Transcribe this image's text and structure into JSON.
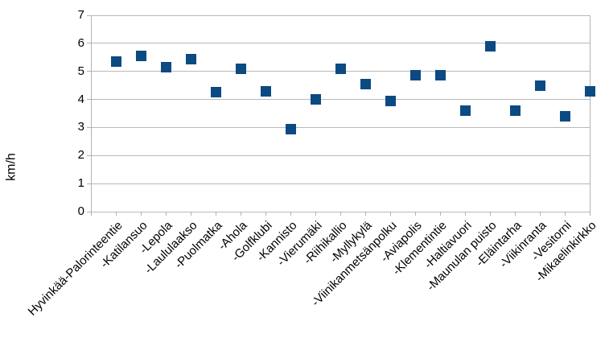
{
  "chart_data": {
    "type": "scatter",
    "title": "",
    "xlabel": "",
    "ylabel": "km/h",
    "categories": [
      "Hyvinkää-Palorinteentie",
      "-Katilansuo",
      "-Lepola",
      "-Laululaakso",
      "-Puolmatka",
      "-Ahola",
      "-Golfklubi",
      "-Kannisto",
      "-Vierumäki",
      "-Riihikallio",
      "-Myllykylä",
      "-Viinikanmetsänpolku",
      "-Aviapolis",
      "-Klementintie",
      "-Haltiavuori",
      "-Maunulan puisto",
      "-Eläintarha",
      "-Viikinranta",
      "-Vesitorni",
      "-Mikaelinkirkko"
    ],
    "values": [
      5.35,
      5.55,
      5.15,
      5.45,
      4.25,
      5.1,
      4.3,
      2.95,
      4.0,
      5.1,
      4.55,
      3.95,
      4.85,
      4.85,
      3.6,
      5.9,
      3.6,
      4.5,
      3.4,
      4.3
    ],
    "ylim": [
      0,
      7
    ],
    "ytick_step": 1,
    "ytick_labels": [
      "0",
      "1",
      "2",
      "3",
      "4",
      "5",
      "6",
      "7"
    ],
    "grid": true,
    "legend": "none",
    "marker": "square",
    "marker_size": 13,
    "marker_color": "#0b4a82",
    "grid_color": "#b9b9b9",
    "axis_color": "#b3b3b3",
    "text_color": "#000000",
    "background_color": "#ffffff"
  }
}
